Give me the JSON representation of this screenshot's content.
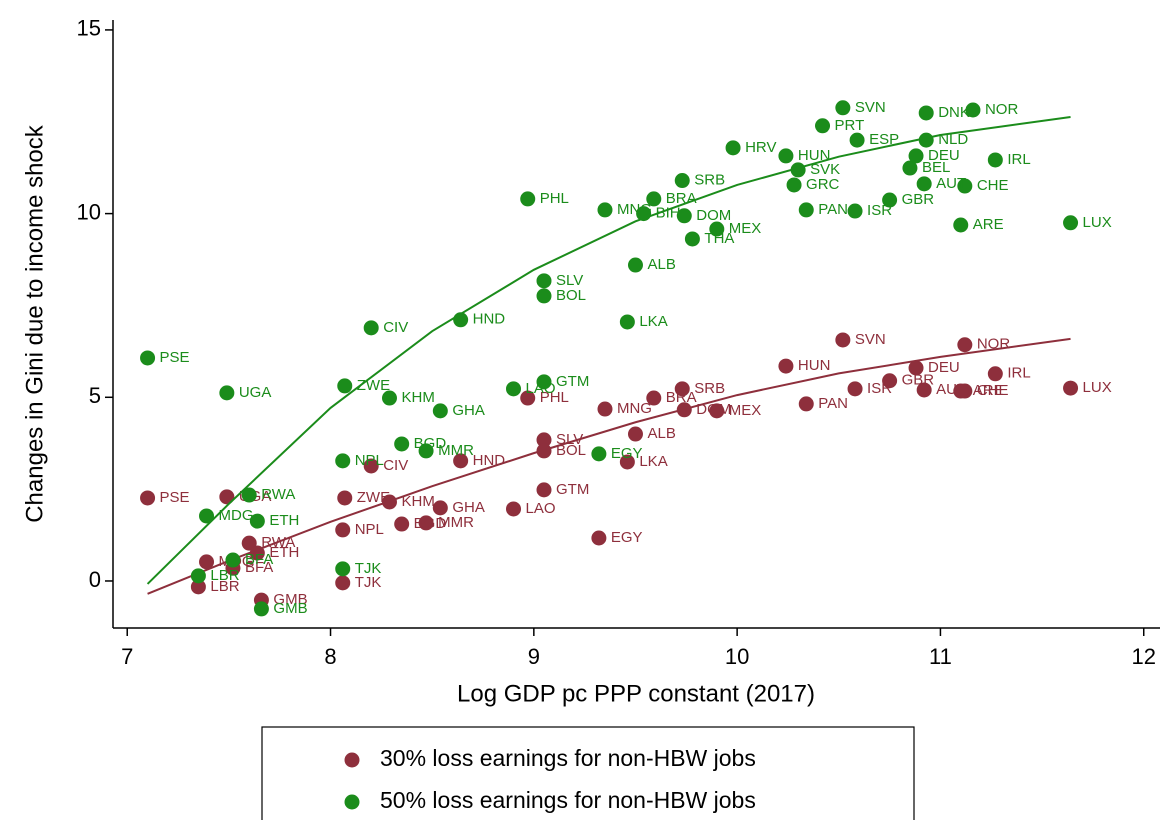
{
  "chart_data": {
    "type": "scatter",
    "xlabel": "Log GDP pc PPP constant (2017)",
    "ylabel": "Changes in Gini due to income shock",
    "xlim": [
      6.93,
      12.08
    ],
    "ylim": [
      -1.28,
      15.27
    ],
    "xticks": [
      7,
      8,
      9,
      10,
      11,
      12
    ],
    "yticks": [
      0,
      5,
      10,
      15
    ],
    "series": [
      {
        "name": "30% loss earnings for non-HBW jobs",
        "color": "#8e2f3c",
        "labels": [
          "PSE",
          "LBR",
          "GMB",
          "TJK",
          "RWA",
          "ETH",
          "BFA",
          "MDG",
          "UGA",
          "NPL",
          "ZWE",
          "KHM",
          "GHA",
          "MMR",
          "BGD",
          "LAO",
          "CIV",
          "HND",
          "GTM",
          "EGY",
          "SLV",
          "BOL",
          "LKA",
          "ALB",
          "PHL",
          "MNG",
          "BRA",
          "SRB",
          "DOM",
          "MEX",
          "PAN",
          "ISR",
          "AUT",
          "CHE",
          "ARE",
          "LUX",
          "IRL",
          "NOR",
          "SVN",
          "HUN",
          "DEU",
          "GBR"
        ],
        "x": [
          7.1,
          7.35,
          7.66,
          8.06,
          7.6,
          7.64,
          7.52,
          7.39,
          7.49,
          8.06,
          8.07,
          8.29,
          8.54,
          8.47,
          8.35,
          8.9,
          8.2,
          8.64,
          9.05,
          9.32,
          9.05,
          9.05,
          9.46,
          9.5,
          8.97,
          9.35,
          9.59,
          9.73,
          9.74,
          9.9,
          10.34,
          10.58,
          10.92,
          11.12,
          11.1,
          11.64,
          11.27,
          11.12,
          10.52,
          10.24,
          10.88,
          10.75
        ],
        "values": [
          2.26,
          -0.16,
          -0.52,
          -0.05,
          1.03,
          0.76,
          0.35,
          0.52,
          2.29,
          1.39,
          2.26,
          2.15,
          1.99,
          1.58,
          1.55,
          1.96,
          3.13,
          3.27,
          2.48,
          1.17,
          3.84,
          3.54,
          3.24,
          4.0,
          4.98,
          4.68,
          4.98,
          5.23,
          4.66,
          4.63,
          4.82,
          5.23,
          5.2,
          5.17,
          5.17,
          5.25,
          5.64,
          6.43,
          6.56,
          5.85,
          5.8,
          5.45
        ],
        "fit": {
          "x": [
            7.1,
            7.5,
            8,
            8.5,
            9,
            9.5,
            10,
            10.5,
            11,
            11.64
          ],
          "values": [
            -0.35,
            0.55,
            1.61,
            2.58,
            3.48,
            4.32,
            5.06,
            5.65,
            6.1,
            6.59
          ]
        }
      },
      {
        "name": "50% loss earnings for non-HBW jobs",
        "color": "#1b8c1b",
        "labels": [
          "PSE",
          "UGA",
          "PHL",
          "MNG",
          "BRA",
          "BIH",
          "DOM",
          "MEX",
          "THA",
          "SRB",
          "SLV",
          "BOL",
          "ALB",
          "LKA",
          "HND",
          "CIV",
          "ZWE",
          "KHM",
          "GHA",
          "GTM",
          "LAO",
          "BGD",
          "MMR",
          "NPL",
          "EGY",
          "RWA",
          "MDG",
          "ETH",
          "LBR",
          "BFA",
          "TJK",
          "GMB",
          "PAN",
          "ISR",
          "GBR",
          "ARE",
          "LUX",
          "CHE",
          "IRL",
          "AUT",
          "BEL",
          "DEU",
          "NLD",
          "NOR",
          "DNK",
          "SVN",
          "GRC",
          "HUN",
          "SVK",
          "PRT",
          "ESP",
          "HRV"
        ],
        "x": [
          7.1,
          7.49,
          8.97,
          9.35,
          9.59,
          9.54,
          9.74,
          9.9,
          9.78,
          9.73,
          9.05,
          9.05,
          9.5,
          9.46,
          8.64,
          8.2,
          8.07,
          8.29,
          8.54,
          9.05,
          8.9,
          8.35,
          8.47,
          8.06,
          9.32,
          7.6,
          7.39,
          7.64,
          7.35,
          7.52,
          8.06,
          7.66,
          10.34,
          10.58,
          10.75,
          11.1,
          11.64,
          11.12,
          11.27,
          10.92,
          10.85,
          10.88,
          10.93,
          11.16,
          10.93,
          10.52,
          10.28,
          10.24,
          10.3,
          10.42,
          10.59,
          9.98
        ],
        "values": [
          6.07,
          5.12,
          10.4,
          10.1,
          10.4,
          10.0,
          9.94,
          9.58,
          9.31,
          10.9,
          8.17,
          7.76,
          8.6,
          7.05,
          7.11,
          6.89,
          5.31,
          4.98,
          4.63,
          5.42,
          5.23,
          3.73,
          3.54,
          3.27,
          3.46,
          2.34,
          1.77,
          1.63,
          0.14,
          0.57,
          0.33,
          -0.76,
          10.1,
          10.07,
          10.37,
          9.69,
          9.75,
          10.75,
          11.46,
          10.81,
          11.24,
          11.57,
          12.0,
          12.82,
          12.74,
          12.88,
          10.78,
          11.57,
          11.19,
          12.39,
          12.0,
          11.79
        ],
        "fit": {
          "x": [
            7.1,
            7.5,
            8,
            8.5,
            9,
            9.5,
            10,
            10.5,
            11,
            11.64
          ],
          "values": [
            -0.08,
            2.1,
            4.71,
            6.8,
            8.47,
            9.79,
            10.78,
            11.55,
            12.14,
            12.63
          ]
        }
      }
    ]
  }
}
